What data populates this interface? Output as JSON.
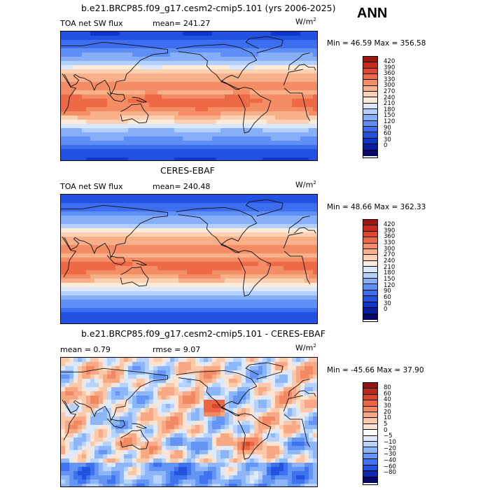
{
  "season": "ANN",
  "unit_base": "W/m",
  "unit_exp": "2",
  "colors": {
    "abs_scale": [
      "#08086b",
      "#0a1f9e",
      "#1038c8",
      "#2452e0",
      "#3e6ef0",
      "#5f8ef5",
      "#86aff8",
      "#b3cffb",
      "#dbe8fc",
      "#fdebd9",
      "#fbd0b3",
      "#f8b08a",
      "#f48d65",
      "#ee6a46",
      "#e0472e",
      "#c52a1d",
      "#a01510"
    ],
    "diff_scale": [
      "#08086b",
      "#102ab0",
      "#2452e0",
      "#3f72ef",
      "#6495f4",
      "#8db6f8",
      "#b8d3fb",
      "#dde9fc",
      "#ffffff",
      "#fde3d2",
      "#fbc8aa",
      "#f8a884",
      "#f38962",
      "#ea6644",
      "#d8462d",
      "#b9281c",
      "#921410"
    ]
  },
  "panels": [
    {
      "id": "model",
      "title": "b.e21.BRCP85.f09_g17.cesm2-cmip5.101 (yrs 2006-2025)",
      "left_label": "TOA net SW flux",
      "stat": "mean= 241.27",
      "min_max": "Min =  46.59 Max =  356.58"
    },
    {
      "id": "obs",
      "title": "CERES-EBAF",
      "left_label": "TOA net SW flux",
      "stat": "mean= 240.48",
      "min_max": "Min =  48.66 Max =  362.33"
    },
    {
      "id": "diff",
      "title": "b.e21.BRCP85.f09_g17.cesm2-cmip5.101 - CERES-EBAF",
      "left_label": "mean =    0.79",
      "stat": "rmse =    9.07",
      "min_max": "Min = -45.66 Max =   37.90"
    }
  ],
  "chart_data": [
    {
      "type": "heatmap",
      "title": "b.e21.BRCP85.f09_g17.cesm2-cmip5.101 (yrs 2006-2025)",
      "variable": "TOA net SW flux",
      "mean": 241.27,
      "min": 46.59,
      "max": 356.58,
      "colorbar_levels": [
        0,
        30,
        60,
        90,
        120,
        150,
        180,
        210,
        240,
        270,
        300,
        330,
        360,
        390,
        420
      ],
      "colorbar_labels": [
        "420",
        "390",
        "360",
        "330",
        "300",
        "270",
        "240",
        "210",
        "180",
        "150",
        "120",
        "90",
        "60",
        "30",
        "0"
      ]
    },
    {
      "type": "heatmap",
      "title": "CERES-EBAF",
      "variable": "TOA net SW flux",
      "mean": 240.48,
      "min": 48.66,
      "max": 362.33,
      "colorbar_levels": [
        0,
        30,
        60,
        90,
        120,
        150,
        180,
        210,
        240,
        270,
        300,
        330,
        360,
        390,
        420
      ],
      "colorbar_labels": [
        "420",
        "390",
        "360",
        "330",
        "300",
        "270",
        "240",
        "210",
        "180",
        "150",
        "120",
        "90",
        "60",
        "30",
        "0"
      ]
    },
    {
      "type": "heatmap",
      "title": "b.e21.BRCP85.f09_g17.cesm2-cmip5.101 - CERES-EBAF",
      "mean": 0.79,
      "rmse": 9.07,
      "min": -45.66,
      "max": 37.9,
      "colorbar_levels": [
        -80,
        -60,
        -40,
        -30,
        -20,
        -10,
        -5,
        0,
        5,
        10,
        20,
        30,
        40,
        60,
        80
      ],
      "colorbar_labels": [
        "80",
        "60",
        "40",
        "30",
        "20",
        "10",
        "5",
        "0",
        "−5",
        "−10",
        "−20",
        "−30",
        "−40",
        "−60",
        "−80"
      ]
    }
  ]
}
